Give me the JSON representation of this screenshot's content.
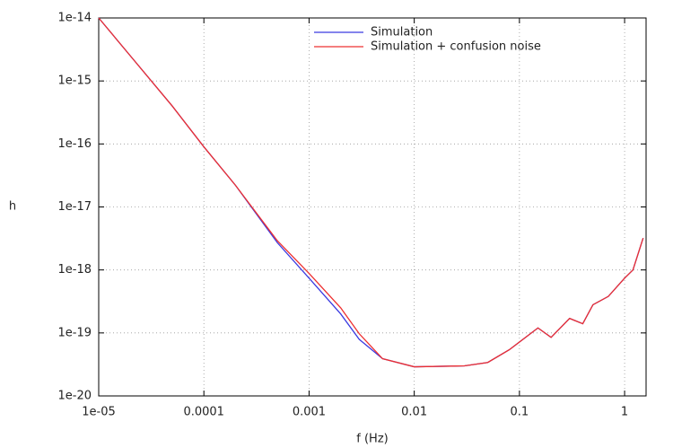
{
  "chart_data": {
    "type": "line",
    "xlabel": "f (Hz)",
    "ylabel": "h",
    "log_x": true,
    "log_y": true,
    "grid": true,
    "legend": "top",
    "x": [
      1e-05,
      2e-05,
      5e-05,
      0.0001,
      0.0002,
      0.0005,
      0.001,
      0.002,
      0.003,
      0.005,
      0.01,
      0.03,
      0.05,
      0.08,
      0.15,
      0.2,
      0.3,
      0.4,
      0.5,
      0.7,
      1,
      1.2,
      1.5
    ],
    "series": [
      {
        "name": "Simulation",
        "color": "#3a3ae0",
        "values": [
          1e-14,
          2.5e-15,
          4e-16,
          9e-17,
          2.2e-17,
          2.7e-18,
          7.4e-19,
          2e-19,
          7.9e-20,
          3.9e-20,
          2.9e-20,
          3e-20,
          3.4e-20,
          5.4e-20,
          1.2e-19,
          8.5e-20,
          1.7e-19,
          1.4e-19,
          2.8e-19,
          3.8e-19,
          7.4e-19,
          1e-18,
          3.2e-18
        ]
      },
      {
        "name": "Simulation + confusion noise",
        "color": "#ee3030",
        "values": [
          1e-14,
          2.5e-15,
          4e-16,
          9e-17,
          2.2e-17,
          2.9e-18,
          8.8e-19,
          2.5e-19,
          9.7e-20,
          3.9e-20,
          2.9e-20,
          3e-20,
          3.4e-20,
          5.4e-20,
          1.2e-19,
          8.5e-20,
          1.7e-19,
          1.4e-19,
          2.8e-19,
          3.8e-19,
          7.4e-19,
          1e-18,
          3.2e-18
        ]
      }
    ],
    "xlim": [
      1e-05,
      1.6
    ],
    "ylim": [
      1e-20,
      1e-14
    ],
    "xticks": [
      {
        "value": 1e-05,
        "label": "1e-05"
      },
      0.0001,
      0.001,
      0.01,
      0.1,
      1
    ],
    "yticks": [
      1e-20,
      1e-19,
      1e-18,
      1e-17,
      1e-16,
      1e-15,
      1e-14
    ]
  }
}
